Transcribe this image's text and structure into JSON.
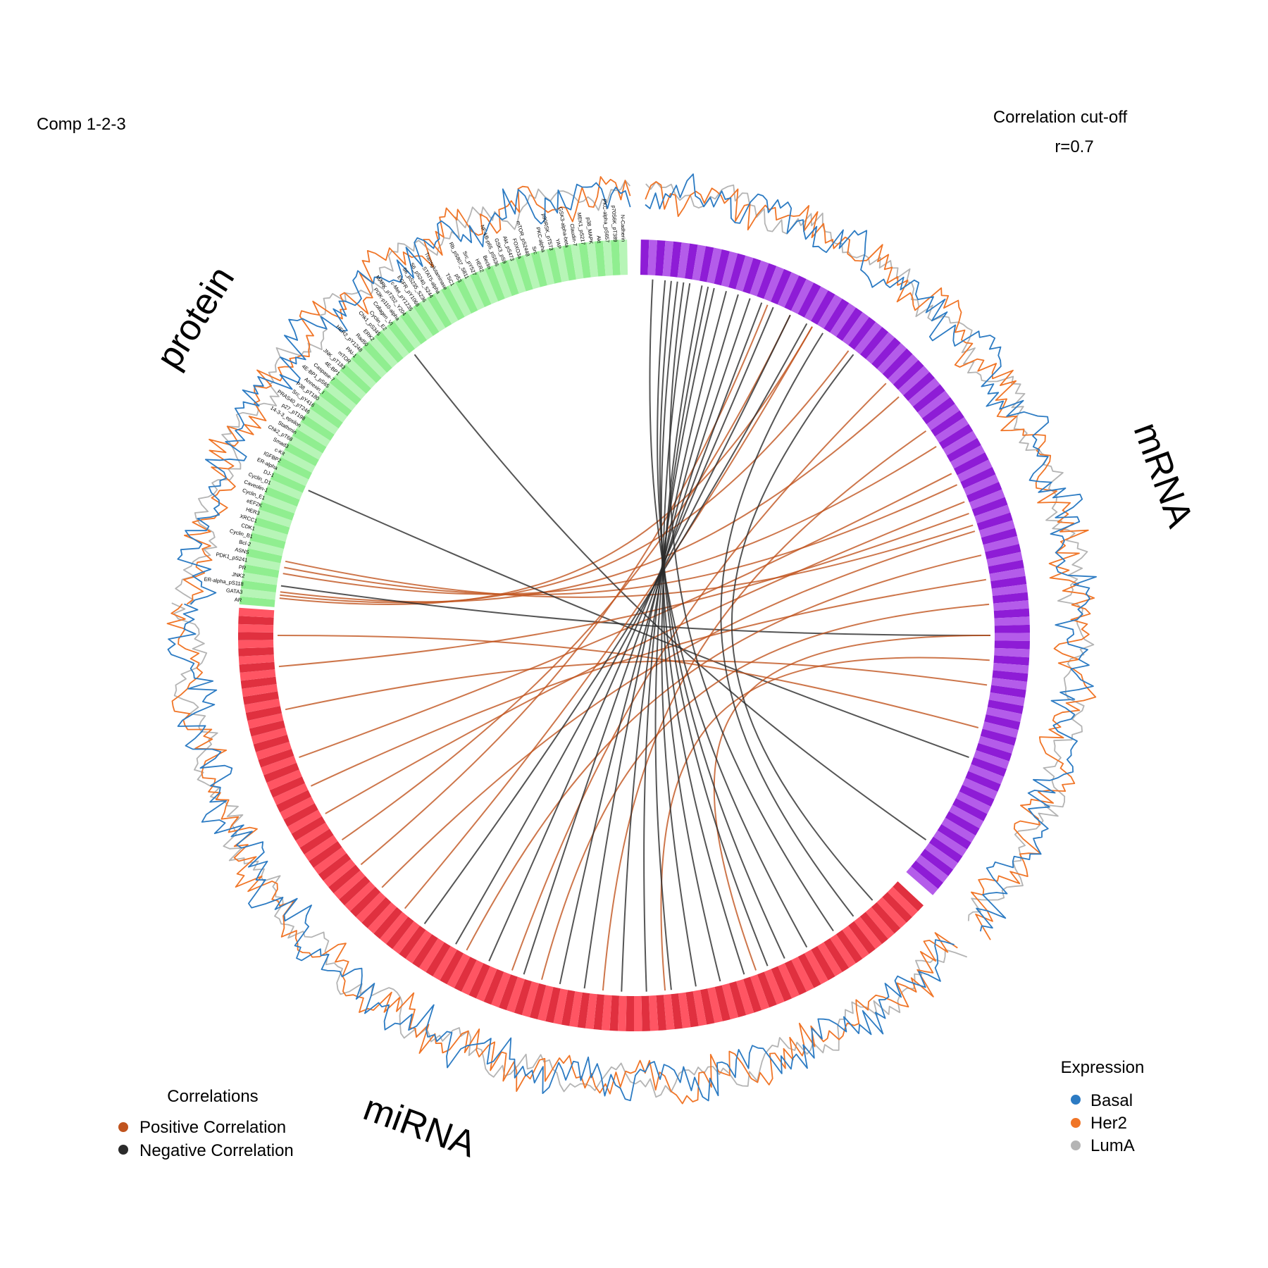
{
  "header": {
    "subtitle": "Comp 1-2-3",
    "cutoff_title": "Correlation cut-off",
    "cutoff_value": "r=0.7"
  },
  "blocks": [
    {
      "id": "protein",
      "label": "protein",
      "color": "#90EE90"
    },
    {
      "id": "mRNA",
      "label": "mRNA",
      "color": "#A020F0"
    },
    {
      "id": "miRNA",
      "label": "miRNA",
      "color": "#FF3040"
    }
  ],
  "protein_labels": [
    "AR",
    "GATA3",
    "ER-alpha_pS118",
    "JNK2",
    "PR",
    "PDK1_pS241",
    "ASNS",
    "Bcl-2",
    "Cyclin_B1",
    "CDK1",
    "XRCC1",
    "HER3",
    "eEF2K",
    "Cyclin_E1",
    "Caveolin-1",
    "Cyclin_D1",
    "DJ-1",
    "ER-alpha",
    "IGFBP2",
    "c-Kit",
    "Smad3",
    "Chk2_pT68",
    "Stathmin",
    "14-3-3_epsilon",
    "p27_pT198",
    "PRAS40_pT246",
    "Src_pY416",
    "P38_pT180",
    "Annexin_I",
    "4E-BP1_pS65",
    "Caspase-7",
    "4E-BP1",
    "JNK_pT183",
    "mTOR",
    "PAI-1",
    "HER2_pY1248",
    "Rad50",
    "ERK2",
    "Chk1_pS345",
    "Cyclin_E2",
    "Collagen_VI",
    "PI3K-p110-alpha",
    "MAPK_pT202_Y204",
    "c-Met_pY1235",
    "EGFR_pY1068",
    "S6_pS235_S236",
    "S6_pS240_S244",
    "STAT5-alpha",
    "Transglutaminase",
    "TSC1",
    "p53",
    "Rb_pS807_S811",
    "Src_pY527",
    "HER2",
    "Beclin",
    "NF-kB-p65_pS536",
    "GSK3_pS9",
    "Akt_pS473",
    "FOXO3a",
    "mTOR_pS2448",
    "Src",
    "PKC-alpha",
    "p90RSK_pT573",
    "YAP",
    "GSK3-alpha-beta",
    "Claudin-7",
    "MEK1_pS217",
    "p38_MAPK",
    "Akt",
    "PKC-alpha_pS657",
    "p70S6K_pT389",
    "N-Cadherin"
  ],
  "correlations": {
    "title": "Correlations",
    "items": [
      {
        "label": "Positive Correlation",
        "color": "#C0541E"
      },
      {
        "label": "Negative Correlation",
        "color": "#2B2B2B"
      }
    ]
  },
  "expression": {
    "title": "Expression",
    "items": [
      {
        "label": "Basal",
        "color": "#2C7BC3"
      },
      {
        "label": "Her2",
        "color": "#F07527"
      },
      {
        "label": "LumA",
        "color": "#B4B4B4"
      }
    ]
  }
}
